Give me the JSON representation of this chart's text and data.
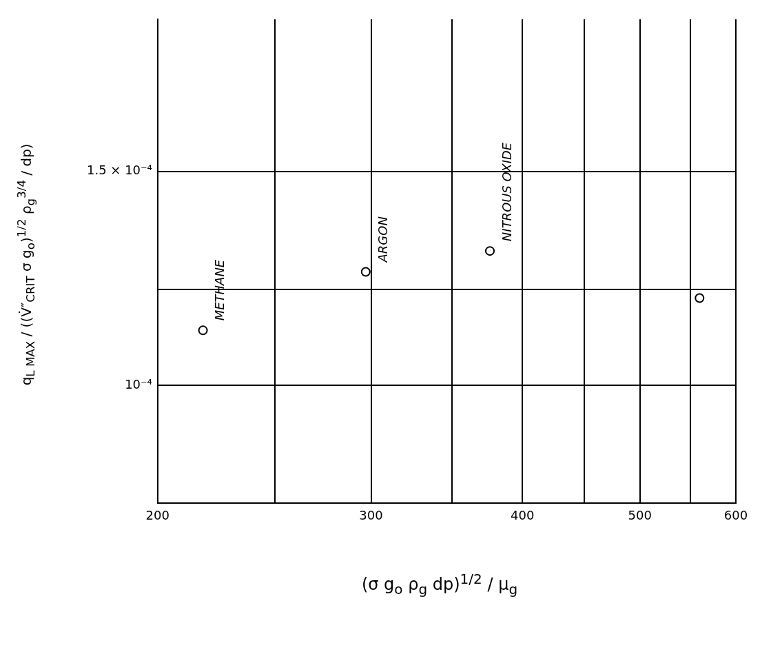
{
  "chart_data": {
    "type": "scatter",
    "xlabel": "(σ g$_{o}$ ρ$_{g}$ dp)$^{1/2}$ / μ$_{g}$",
    "ylabel": "q$_{L MAX}$ / ((V̇″$_{CRIT}$ σ g$_{o}$)$^{1/2}$ ρ$_{g}$$^{3/4}$ / dp)",
    "x": [
      218,
      297,
      376,
      560
    ],
    "series": [
      {
        "color": "#000000",
        "values": [
          0.000111,
          0.000124,
          0.000129,
          0.000118
        ]
      }
    ],
    "xlim": [
      200,
      600
    ],
    "xticks": [
      200,
      {
        "value": 250,
        "label": null
      },
      300,
      {
        "value": 350,
        "label": null
      },
      400,
      {
        "value": 450,
        "label": null
      },
      500,
      {
        "value": 550,
        "label": null
      },
      600
    ],
    "ylim": [
      8e-05,
      0.0002
    ],
    "yticks": [
      {
        "value": 0.0001,
        "label": "10⁻⁴"
      },
      {
        "value": 0.00012,
        "label": null
      },
      {
        "value": 0.00015,
        "label": "1.5 × 10⁻⁴"
      }
    ],
    "log": "xy",
    "grid": true,
    "legend": false,
    "marker": "circle",
    "annotations": [
      {
        "text": "METHANE",
        "x": 218,
        "y": 0.000111
      },
      {
        "text": "ARGON",
        "x": 297,
        "y": 0.000124
      },
      {
        "text": "NITROUS OXIDE",
        "x": 376,
        "y": 0.000129
      }
    ]
  }
}
